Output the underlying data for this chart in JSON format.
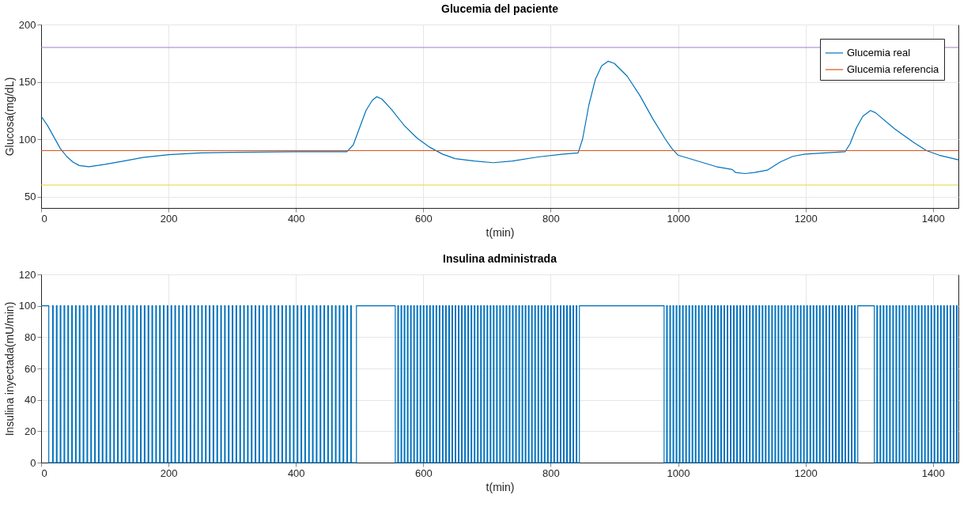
{
  "chart_data": [
    {
      "type": "line",
      "title": "Glucemia del paciente",
      "xlabel": "t(min)",
      "ylabel": "Glucosa(mg/dL)",
      "xlim": [
        0,
        1440
      ],
      "xticks": [
        0,
        200,
        400,
        600,
        800,
        1000,
        1200,
        1400
      ],
      "ylim": [
        40,
        200
      ],
      "yticks": [
        50,
        100,
        150,
        200
      ],
      "grid": true,
      "legend": "top right",
      "series": [
        {
          "name": "Glucemia real",
          "color": "#0072bd",
          "x": [
            0,
            10,
            20,
            30,
            40,
            50,
            60,
            75,
            100,
            130,
            160,
            200,
            250,
            300,
            400,
            480,
            490,
            500,
            510,
            520,
            527,
            535,
            550,
            570,
            590,
            610,
            630,
            650,
            680,
            710,
            740,
            780,
            820,
            843,
            850,
            860,
            870,
            880,
            890,
            900,
            920,
            940,
            960,
            980,
            990,
            1000,
            1030,
            1060,
            1080,
            1085,
            1090,
            1105,
            1120,
            1140,
            1160,
            1180,
            1200,
            1230,
            1262,
            1270,
            1280,
            1290,
            1302,
            1310,
            1340,
            1370,
            1390,
            1410,
            1440
          ],
          "values": [
            120,
            112,
            102,
            92,
            85,
            80,
            77,
            76,
            78,
            81,
            84,
            86.5,
            88,
            88.5,
            89,
            89,
            95,
            110,
            125,
            134,
            137,
            135,
            126,
            112,
            101,
            93,
            87,
            83,
            81,
            79.5,
            81,
            84.5,
            87,
            88,
            100,
            130,
            152,
            164,
            168,
            166,
            155,
            138,
            118,
            100,
            92,
            86,
            81,
            76,
            74,
            73.5,
            71,
            70,
            71,
            73,
            80,
            85,
            87,
            88,
            89,
            96,
            110,
            120,
            125,
            123,
            109,
            97,
            90,
            86,
            82
          ]
        },
        {
          "name": "Glucemia referencia",
          "color": "#d95319",
          "x": [
            0,
            1440
          ],
          "values": [
            90,
            90
          ]
        }
      ],
      "ref_lines": [
        {
          "axis": "y",
          "value": 180,
          "color": "#a77cc4"
        },
        {
          "axis": "y",
          "value": 60,
          "color": "#e3d33a"
        }
      ]
    },
    {
      "type": "step",
      "title": "Insulina administrada",
      "xlabel": "t(min)",
      "ylabel": "Insulina inyectada(mU/min)",
      "xlim": [
        0,
        1440
      ],
      "xticks": [
        0,
        200,
        400,
        600,
        800,
        1000,
        1200,
        1400
      ],
      "ylim": [
        0,
        120
      ],
      "yticks": [
        0,
        20,
        40,
        60,
        80,
        100,
        120
      ],
      "grid": true,
      "series": [
        {
          "color": "#0072bd",
          "x": [
            0,
            12,
            18,
            19,
            24,
            25,
            30,
            31,
            36,
            37,
            42,
            43,
            48,
            49,
            54,
            55,
            60,
            61,
            66,
            67,
            72,
            73,
            78,
            79,
            84,
            85,
            90,
            91,
            96,
            97,
            102,
            103,
            108,
            109,
            114,
            115,
            120,
            121,
            126,
            127,
            132,
            133,
            138,
            139,
            144,
            145,
            150,
            151,
            156,
            157,
            162,
            163,
            168,
            169,
            174,
            175,
            180,
            181,
            186,
            187,
            192,
            193,
            198,
            199,
            204,
            205,
            210,
            211,
            216,
            217,
            222,
            223,
            228,
            229,
            234,
            235,
            240,
            241,
            246,
            247,
            252,
            253,
            258,
            259,
            264,
            265,
            270,
            271,
            276,
            277,
            282,
            283,
            288,
            289,
            294,
            295,
            300,
            301,
            306,
            307,
            312,
            313,
            318,
            319,
            324,
            325,
            330,
            331,
            336,
            337,
            342,
            343,
            348,
            349,
            354,
            355,
            360,
            361,
            366,
            367,
            372,
            373,
            378,
            379,
            384,
            385,
            390,
            391,
            396,
            397,
            402,
            403,
            408,
            409,
            414,
            415,
            420,
            421,
            426,
            427,
            432,
            433,
            438,
            439,
            444,
            445,
            450,
            451,
            456,
            457,
            462,
            463,
            468,
            469,
            474,
            475,
            480,
            481,
            486,
            487,
            495,
            556,
            560,
            561,
            565,
            566,
            570,
            571,
            575,
            576,
            580,
            581,
            585,
            586,
            590,
            591,
            595,
            596,
            600,
            601,
            605,
            606,
            610,
            611,
            615,
            616,
            620,
            621,
            625,
            626,
            630,
            631,
            635,
            636,
            640,
            641,
            645,
            646,
            650,
            651,
            655,
            656,
            660,
            661,
            665,
            666,
            670,
            671,
            675,
            676,
            680,
            681,
            685,
            686,
            690,
            691,
            695,
            696,
            700,
            701,
            705,
            706,
            710,
            711,
            715,
            716,
            720,
            721,
            725,
            726,
            730,
            731,
            735,
            736,
            740,
            741,
            745,
            746,
            750,
            751,
            755,
            756,
            760,
            761,
            765,
            766,
            770,
            771,
            775,
            776,
            780,
            781,
            785,
            786,
            790,
            791,
            795,
            796,
            800,
            801,
            805,
            806,
            810,
            811,
            815,
            816,
            820,
            821,
            825,
            826,
            830,
            831,
            835,
            836,
            840,
            841,
            845,
            978,
            982,
            983,
            987,
            988,
            992,
            993,
            997,
            998,
            1002,
            1003,
            1007,
            1008,
            1012,
            1013,
            1017,
            1018,
            1022,
            1023,
            1027,
            1028,
            1032,
            1033,
            1037,
            1038,
            1042,
            1043,
            1047,
            1048,
            1052,
            1053,
            1057,
            1058,
            1062,
            1063,
            1067,
            1068,
            1072,
            1073,
            1077,
            1078,
            1082,
            1083,
            1087,
            1088,
            1092,
            1093,
            1097,
            1098,
            1102,
            1103,
            1107,
            1108,
            1112,
            1113,
            1117,
            1118,
            1122,
            1123,
            1127,
            1128,
            1132,
            1133,
            1137,
            1138,
            1142,
            1143,
            1147,
            1148,
            1152,
            1153,
            1157,
            1158,
            1162,
            1163,
            1167,
            1168,
            1172,
            1173,
            1177,
            1178,
            1182,
            1183,
            1187,
            1188,
            1192,
            1193,
            1197,
            1198,
            1202,
            1203,
            1207,
            1208,
            1212,
            1213,
            1217,
            1218,
            1222,
            1223,
            1227,
            1228,
            1232,
            1233,
            1237,
            1238,
            1242,
            1243,
            1247,
            1248,
            1252,
            1253,
            1257,
            1258,
            1262,
            1263,
            1267,
            1268,
            1272,
            1273,
            1277,
            1278,
            1282,
            1308,
            1312,
            1313,
            1317,
            1318,
            1322,
            1323,
            1327,
            1328,
            1332,
            1333,
            1337,
            1338,
            1342,
            1343,
            1347,
            1348,
            1352,
            1353,
            1357,
            1358,
            1362,
            1363,
            1367,
            1368,
            1372,
            1373,
            1377,
            1378,
            1382,
            1383,
            1387,
            1388,
            1392,
            1393,
            1397,
            1398,
            1402,
            1403,
            1407,
            1408,
            1412,
            1413,
            1417,
            1418,
            1422,
            1423,
            1427,
            1428,
            1432,
            1433,
            1437,
            1438,
            1440
          ],
          "values": [
            100,
            0,
            100,
            0,
            100,
            0,
            100,
            0,
            100,
            0,
            100,
            0,
            100,
            0,
            100,
            0,
            100,
            0,
            100,
            0,
            100,
            0,
            100,
            0,
            100,
            0,
            100,
            0,
            100,
            0,
            100,
            0,
            100,
            0,
            100,
            0,
            100,
            0,
            100,
            0,
            100,
            0,
            100,
            0,
            100,
            0,
            100,
            0,
            100,
            0,
            100,
            0,
            100,
            0,
            100,
            0,
            100,
            0,
            100,
            0,
            100,
            0,
            100,
            0,
            100,
            0,
            100,
            0,
            100,
            0,
            100,
            0,
            100,
            0,
            100,
            0,
            100,
            0,
            100,
            0,
            100,
            0,
            100,
            0,
            100,
            0,
            100,
            0,
            100,
            0,
            100,
            0,
            100,
            0,
            100,
            0,
            100,
            0,
            100,
            0,
            100,
            0,
            100,
            0,
            100,
            0,
            100,
            0,
            100,
            0,
            100,
            0,
            100,
            0,
            100,
            0,
            100,
            0,
            100,
            0,
            100,
            0,
            100,
            0,
            100,
            0,
            100,
            0,
            100,
            0,
            100,
            0,
            100,
            0,
            100,
            0,
            100,
            0,
            100,
            0,
            100,
            0,
            100,
            0,
            100,
            0,
            100,
            0,
            100,
            0,
            100,
            0,
            100,
            0,
            100,
            0,
            100,
            0,
            100,
            0,
            100,
            0,
            100,
            0,
            100,
            0,
            100,
            0,
            100,
            0,
            100,
            0,
            100,
            0,
            100,
            0,
            100,
            0,
            100,
            0,
            100,
            0,
            100,
            0,
            100,
            0,
            100,
            0,
            100,
            0,
            100,
            0,
            100,
            0,
            100,
            0,
            100,
            0,
            100,
            0,
            100,
            0,
            100,
            0,
            100,
            0,
            100,
            0,
            100,
            0,
            100,
            0,
            100,
            0,
            100,
            0,
            100,
            0,
            100,
            0,
            100,
            0,
            100,
            0,
            100,
            0,
            100,
            0,
            100,
            0,
            100,
            0,
            100,
            0,
            100,
            0,
            100,
            0,
            100,
            0,
            100,
            0,
            100,
            0,
            100,
            0,
            100,
            0,
            100,
            0,
            100,
            0,
            100,
            0,
            100,
            0,
            100,
            0,
            100,
            0,
            100,
            0,
            100,
            0,
            100,
            0,
            100,
            0,
            100,
            0,
            100,
            0,
            100,
            0,
            100,
            0,
            100,
            0,
            100,
            0,
            100,
            0,
            100,
            0,
            100,
            0,
            100,
            0,
            100,
            0,
            100,
            0,
            100,
            0,
            100,
            0,
            100,
            0,
            100,
            0,
            100,
            0,
            100,
            0,
            100,
            0,
            100,
            0,
            100,
            0,
            100,
            0,
            100,
            0,
            100,
            0,
            100,
            0,
            100,
            0,
            100,
            0,
            100,
            0,
            100,
            0,
            100,
            0,
            100,
            0,
            100,
            0,
            100,
            0,
            100,
            0,
            100,
            0,
            100,
            0,
            100,
            0,
            100,
            0,
            100,
            0,
            100,
            0,
            100,
            0,
            100,
            0,
            100,
            0,
            100,
            0,
            100,
            0,
            100,
            0,
            100,
            0,
            100,
            0,
            100,
            0,
            100,
            0,
            100,
            0,
            100,
            0,
            100,
            0,
            100,
            0,
            100,
            0,
            100,
            0,
            100,
            0,
            100,
            0,
            100,
            0,
            100,
            0,
            100,
            0,
            100,
            0,
            100,
            0,
            100,
            0,
            100,
            0,
            100,
            0,
            100,
            0,
            100,
            0,
            100,
            0,
            100,
            0,
            100,
            0,
            100,
            0,
            100,
            0,
            100,
            0,
            100,
            0,
            100,
            0,
            100,
            0,
            100,
            0,
            100,
            0,
            100,
            0,
            100,
            0,
            100,
            0,
            100,
            0,
            100,
            0,
            100,
            0,
            100,
            0,
            100,
            0,
            100,
            0,
            100,
            0,
            100,
            0,
            100,
            0,
            100,
            0,
            0
          ]
        }
      ]
    }
  ]
}
